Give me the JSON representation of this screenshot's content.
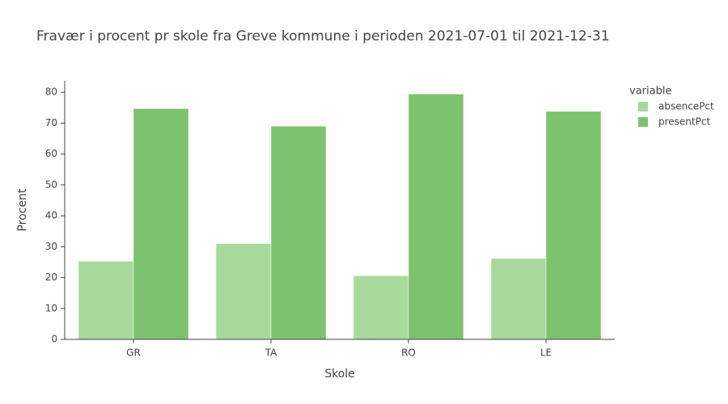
{
  "chart_data": {
    "type": "bar",
    "title": "Fravær i procent pr skole fra Greve kommune i perioden 2021-07-01 til 2021-12-31",
    "x_label": "Skole",
    "y_label": "Procent",
    "categories": [
      "GR",
      "TA",
      "RO",
      "LE"
    ],
    "series": [
      {
        "name": "absencePct",
        "color": "#a8d99c",
        "values": [
          25.3,
          31.0,
          20.6,
          26.2
        ]
      },
      {
        "name": "presentPct",
        "color": "#7dc26e",
        "values": [
          74.7,
          69.0,
          79.4,
          73.8
        ]
      }
    ],
    "legend_title": "variable",
    "ylim": [
      0,
      83.7
    ],
    "yticks": [
      0,
      10,
      20,
      30,
      40,
      50,
      60,
      70,
      80
    ],
    "grid": false
  }
}
